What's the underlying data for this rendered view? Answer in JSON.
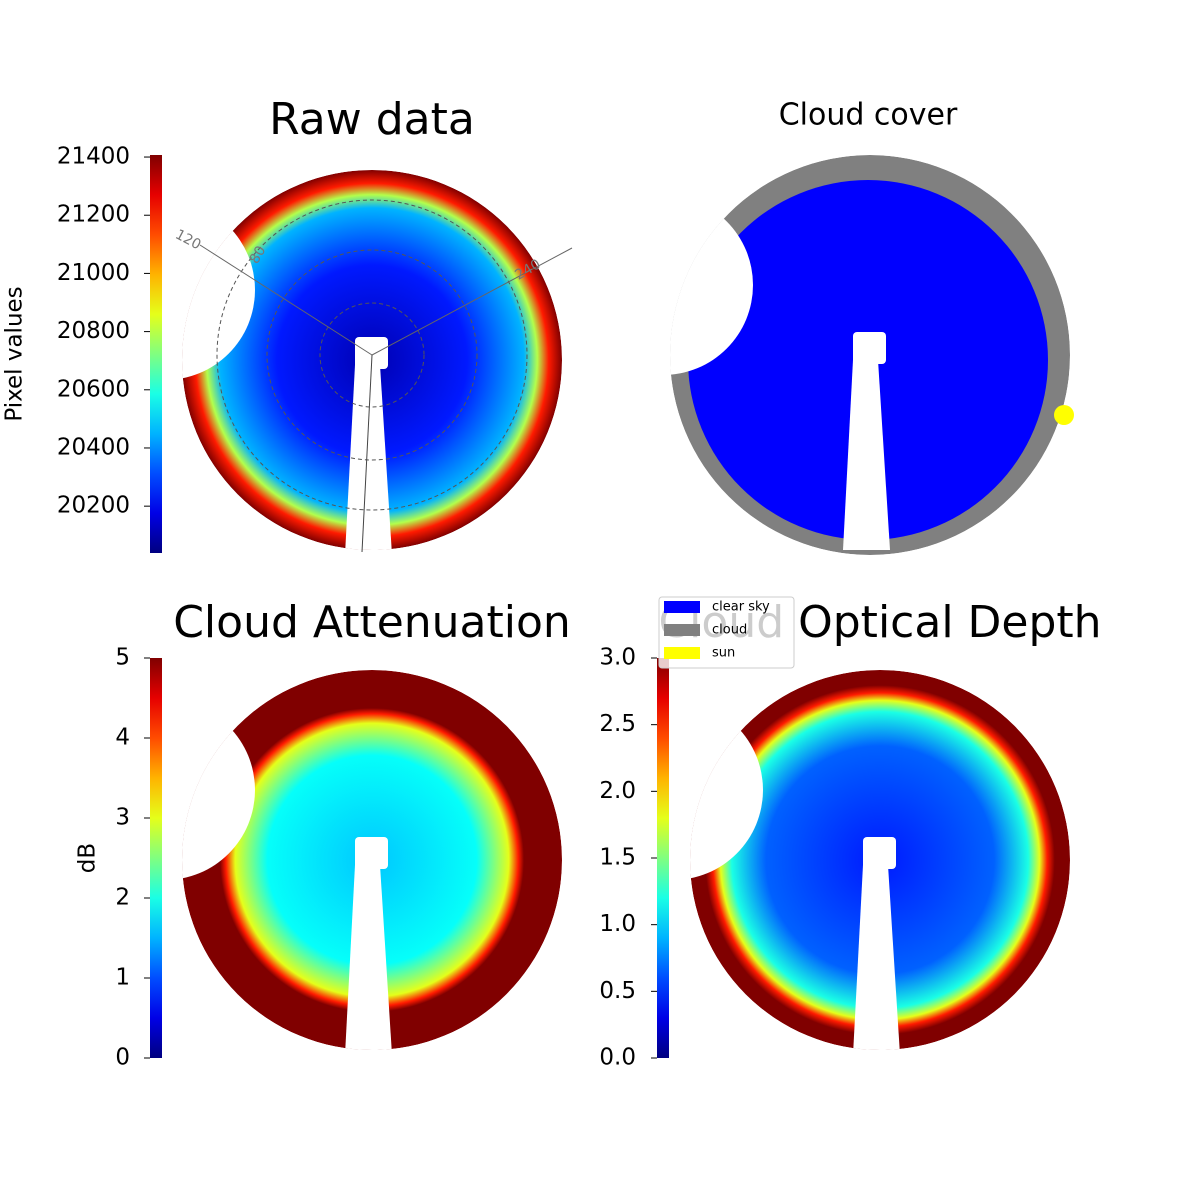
{
  "chart_data": [
    {
      "type": "image",
      "title": "Raw data",
      "colormap": "jet",
      "clabel": "Pixel values",
      "clim": [
        20039,
        21407
      ],
      "cticks": [
        20200,
        20400,
        20600,
        20800,
        21000,
        21200,
        21400
      ],
      "annotations": [
        "120",
        "80",
        "240"
      ]
    },
    {
      "type": "image",
      "title": "Cloud cover",
      "series": [
        {
          "name": "clear sky",
          "color": "#0000ff"
        },
        {
          "name": "cloud",
          "color": "#808080"
        },
        {
          "name": "sun",
          "color": "#ffff00"
        }
      ]
    },
    {
      "type": "image",
      "title": "Cloud Attenuation",
      "colormap": "jet",
      "clabel": "dB",
      "clim": [
        0,
        5
      ],
      "cticks": [
        0,
        1,
        2,
        3,
        4,
        5
      ]
    },
    {
      "type": "image",
      "title": "Cloud Optical Depth",
      "colormap": "jet",
      "clim": [
        0,
        3
      ],
      "cticks": [
        {
          "value": 0,
          "label": "0.0"
        },
        0.5,
        {
          "value": 1,
          "label": "1.0"
        },
        1.5,
        {
          "value": 2,
          "label": "2.0"
        },
        2.5,
        {
          "value": 3,
          "label": "3.0"
        }
      ]
    }
  ]
}
